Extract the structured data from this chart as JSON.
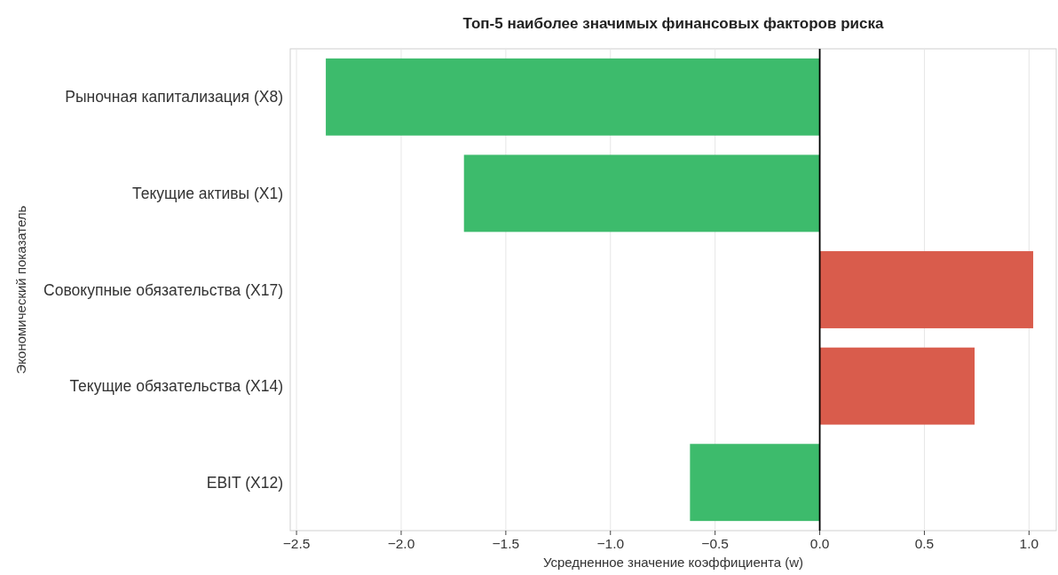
{
  "chart_data": {
    "type": "bar",
    "orientation": "horizontal",
    "title": "Топ-5 наиболее значимых финансовых факторов риска",
    "xlabel": "Усредненное значение коэффициента (w)",
    "ylabel": "Экономический показатель",
    "categories": [
      "Рыночная капитализация (X8)",
      "Текущие активы (X1)",
      "Совокупные обязательства (X17)",
      "Текущие обязательства (X14)",
      "EBIT (X12)"
    ],
    "values": [
      -2.36,
      -1.7,
      1.02,
      0.74,
      -0.62
    ],
    "colors": [
      "#3dbb6c",
      "#3dbb6c",
      "#d95c4c",
      "#d95c4c",
      "#3dbb6c"
    ],
    "xlim": [
      -2.53,
      1.13
    ],
    "xticks": [
      {
        "value": -2.5,
        "label": "−2.5"
      },
      {
        "value": -2.0,
        "label": "−2.0"
      },
      {
        "value": -1.5,
        "label": "−1.5"
      },
      {
        "value": -1.0,
        "label": "−1.0"
      },
      {
        "value": -0.5,
        "label": "−0.5"
      },
      {
        "value": 0,
        "label": "0.0"
      },
      {
        "value": 0.5,
        "label": "0.5"
      },
      {
        "value": 1.0,
        "label": "1.0"
      }
    ],
    "grid": "x",
    "ref_lines": [
      {
        "axis": "x",
        "value": 0,
        "color": "#000000"
      }
    ]
  }
}
